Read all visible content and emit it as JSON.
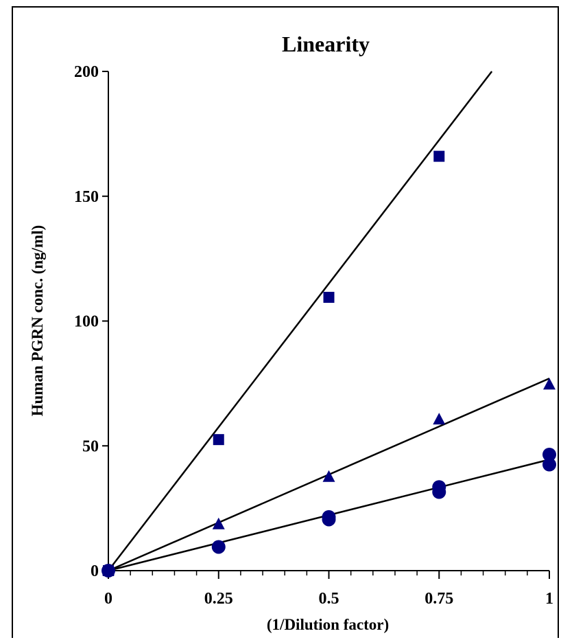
{
  "chart_data": {
    "type": "scatter",
    "title": "Linearity",
    "xlabel": "(1/Dilution  factor)",
    "ylabel": "Human  PGRN conc. (ng/ml)",
    "xlim": [
      0,
      1
    ],
    "ylim": [
      0,
      200
    ],
    "x_ticks": [
      "0",
      "0.25",
      "0.5",
      "0.75",
      "1"
    ],
    "y_ticks": [
      "0",
      "50",
      "100",
      "150",
      "200"
    ],
    "grid": false,
    "marker_color": "#000080",
    "line_color": "#000000",
    "series": [
      {
        "marker": "square",
        "points": [
          [
            0,
            0
          ],
          [
            0.25,
            52.5
          ],
          [
            0.5,
            109.5
          ],
          [
            0.75,
            166
          ]
        ],
        "fit_slope": 230
      },
      {
        "marker": "triangle",
        "points": [
          [
            0,
            0
          ],
          [
            0.25,
            18.5
          ],
          [
            0.5,
            37.5
          ],
          [
            0.75,
            60.5
          ],
          [
            1,
            74.5
          ]
        ],
        "fit_slope": 77
      },
      {
        "marker": "circle",
        "points": [
          [
            0,
            0
          ],
          [
            0.25,
            9.5
          ],
          [
            0.5,
            20.5
          ],
          [
            0.5,
            21.5
          ],
          [
            0.75,
            31.5
          ],
          [
            0.75,
            33.5
          ],
          [
            1,
            42.5
          ],
          [
            1,
            46.5
          ]
        ],
        "fit_slope": 44.5
      }
    ]
  }
}
